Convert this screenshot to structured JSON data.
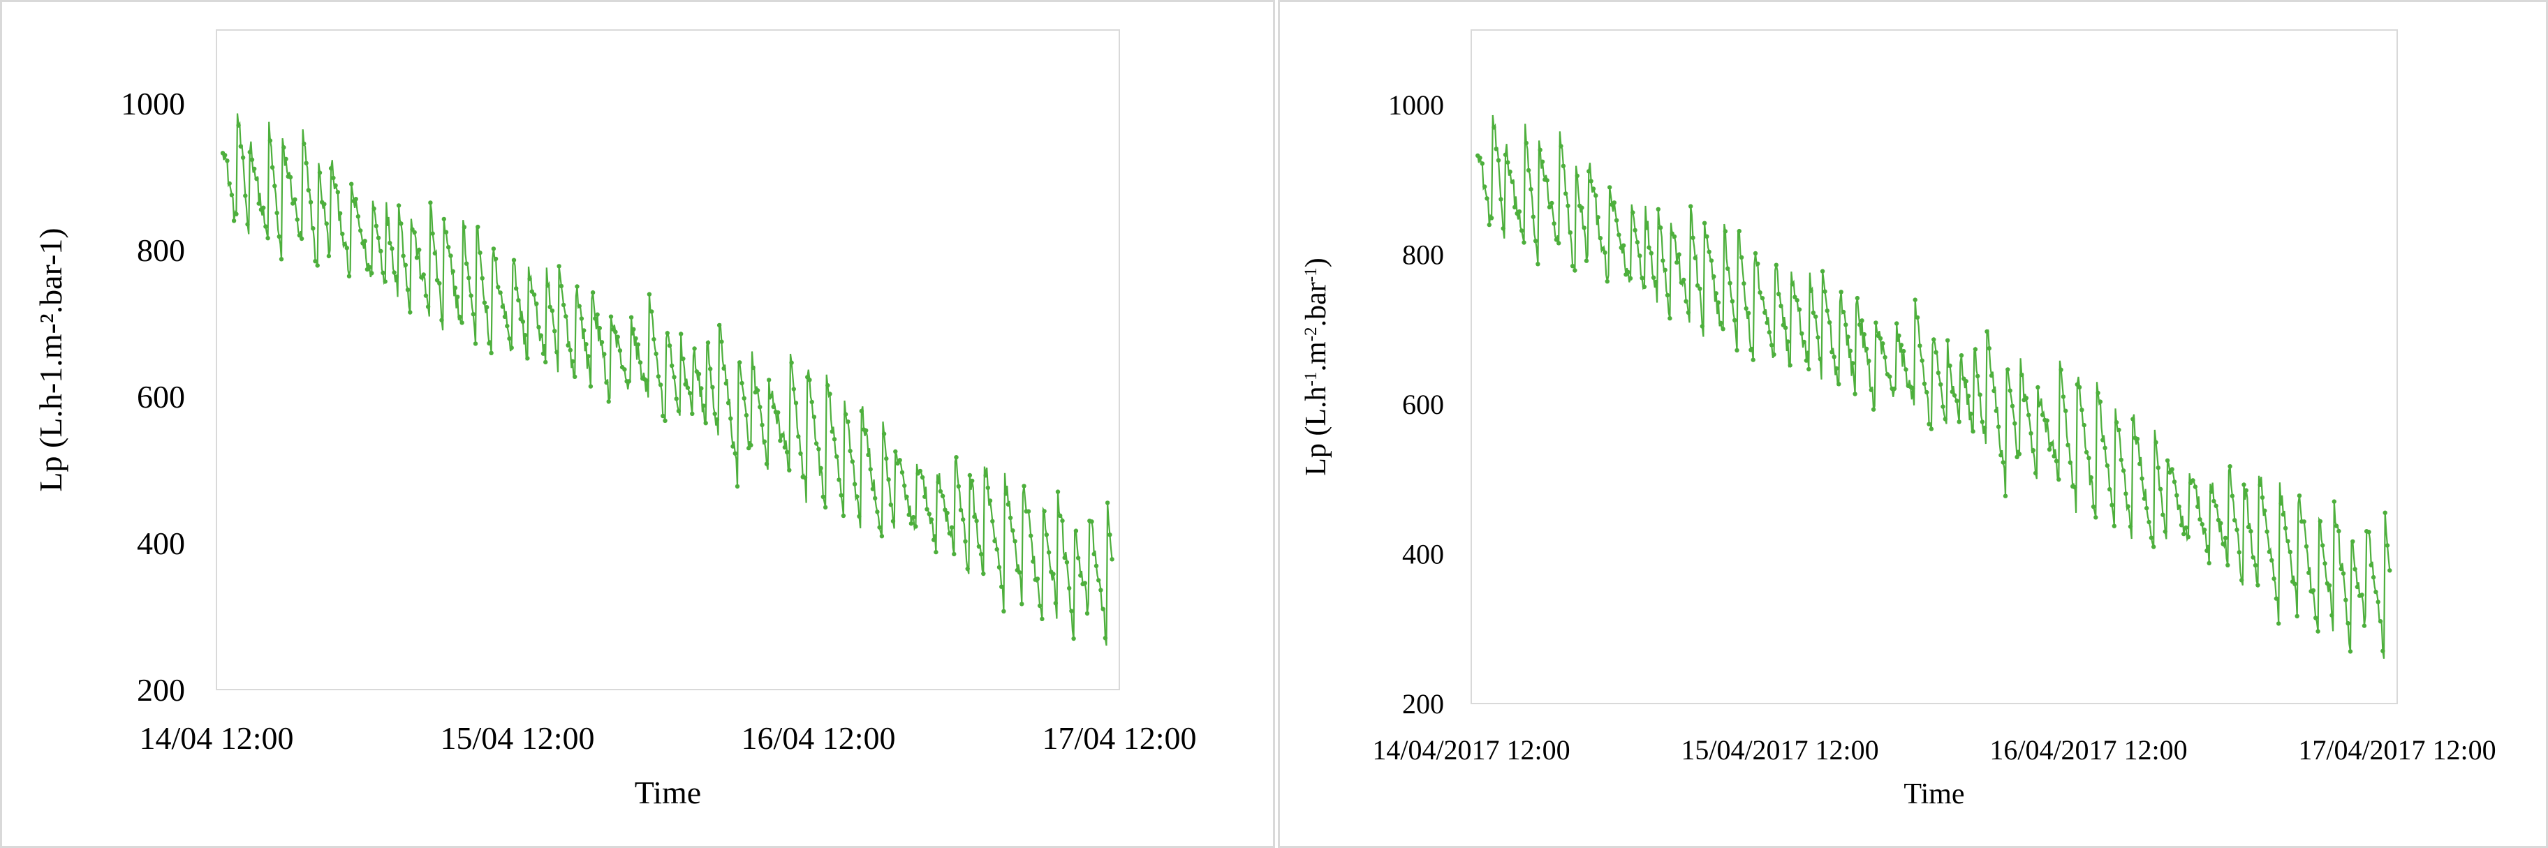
{
  "chart_data": [
    {
      "type": "line",
      "xlabel": "Time",
      "ylabel": "Lp (L.h-1.m-².bar-1)",
      "yticks": [
        "200",
        "400",
        "600",
        "800",
        "1000"
      ],
      "ylim": [
        200,
        1100
      ],
      "xticks": [
        "14/04 12:00",
        "15/04 12:00",
        "16/04 12:00",
        "17/04 12:00"
      ],
      "xlim_hours": [
        0,
        72
      ],
      "grid": false,
      "legend": "none",
      "color": "#4daf3c",
      "markers": true,
      "series": [
        {
          "x_hours": [
            0.5,
            2,
            4,
            6,
            8,
            10,
            12,
            14,
            16,
            18,
            20,
            22,
            24,
            26,
            28,
            30,
            32,
            34,
            36,
            38,
            40,
            42,
            44,
            46,
            48,
            50,
            52,
            54,
            56,
            58,
            60,
            62,
            64,
            66,
            68,
            70,
            71.5
          ],
          "values": [
            880,
            900,
            860,
            870,
            845,
            830,
            810,
            795,
            770,
            760,
            745,
            730,
            715,
            700,
            685,
            670,
            650,
            640,
            625,
            610,
            595,
            575,
            560,
            545,
            530,
            510,
            490,
            470,
            455,
            440,
            420,
            405,
            390,
            375,
            360,
            345,
            335
          ]
        }
      ]
    },
    {
      "type": "line",
      "xlabel": "Time",
      "ylabel_parts": [
        "Lp (L.h",
        "-1",
        ".m",
        "-2",
        ".bar",
        "-1",
        ")"
      ],
      "yticks": [
        "200",
        "400",
        "600",
        "800",
        "1000"
      ],
      "ylim": [
        200,
        1100
      ],
      "xticks": [
        "14/04/2017 12:00",
        "15/04/2017 12:00",
        "16/04/2017 12:00",
        "17/04/2017 12:00"
      ],
      "xlim_hours": [
        0,
        72
      ],
      "grid": false,
      "legend": "none",
      "color": "#4daf3c",
      "markers": true,
      "series": [
        {
          "x_hours": [
            0.5,
            2,
            4,
            6,
            8,
            10,
            12,
            14,
            16,
            18,
            20,
            22,
            24,
            26,
            28,
            30,
            32,
            34,
            36,
            38,
            40,
            42,
            44,
            46,
            48,
            50,
            52,
            54,
            56,
            58,
            60,
            62,
            64,
            66,
            68,
            70,
            71.5
          ],
          "values": [
            880,
            900,
            860,
            870,
            845,
            830,
            810,
            795,
            770,
            760,
            745,
            730,
            715,
            700,
            685,
            670,
            650,
            640,
            625,
            610,
            595,
            575,
            560,
            545,
            530,
            510,
            490,
            470,
            455,
            440,
            420,
            405,
            390,
            375,
            360,
            345,
            335
          ]
        }
      ]
    }
  ]
}
